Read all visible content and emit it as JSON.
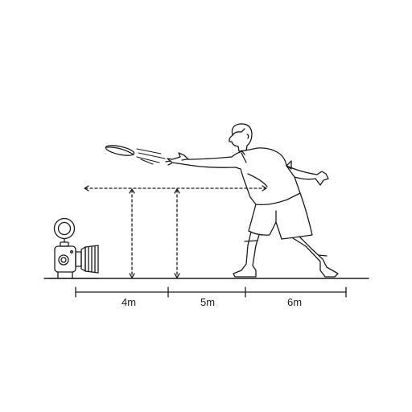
{
  "colors": {
    "line": "#1a1a1a",
    "background": "#ffffff"
  },
  "dimensions": {
    "segments": [
      {
        "label": "4m"
      },
      {
        "label": "5m"
      },
      {
        "label": "6m"
      }
    ]
  },
  "scene": {
    "icons": [
      "camera-icon",
      "person-throwing-icon",
      "frisbee-icon"
    ]
  }
}
